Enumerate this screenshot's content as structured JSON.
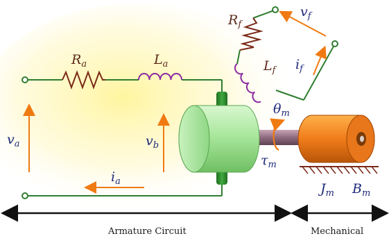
{
  "labels": {
    "Ra": {
      "base": "R",
      "sub": "a"
    },
    "La": {
      "base": "L",
      "sub": "a"
    },
    "Rf": {
      "base": "R",
      "sub": "f"
    },
    "Lf": {
      "base": "L",
      "sub": "f"
    },
    "vf": {
      "base": "v",
      "sub": "f"
    },
    "if": {
      "base": "i",
      "sub": "f"
    },
    "va": {
      "base": "v",
      "sub": "a"
    },
    "vb": {
      "base": "v",
      "sub": "b"
    },
    "ia": {
      "base": "i",
      "sub": "a"
    },
    "thm": {
      "base": "θ",
      "sub": "m"
    },
    "taum": {
      "base": "τ",
      "sub": "m"
    },
    "Jm": {
      "base": "J",
      "sub": "m"
    },
    "Bm": {
      "base": "B",
      "sub": "m"
    }
  },
  "captions": {
    "armature": "Armature Circuit",
    "mechanical": "Mechanical"
  },
  "colors": {
    "wire": "#2f7d2f",
    "arrow": "#f07a12",
    "resistor": "#7a2a18",
    "inductor": "#8a2aa0",
    "motor_body": "#a8e6a0",
    "brush": "#2a8a2a",
    "load": "#ee7a18",
    "shaft": "#8a6a7a",
    "glow": "#fff3a0"
  }
}
